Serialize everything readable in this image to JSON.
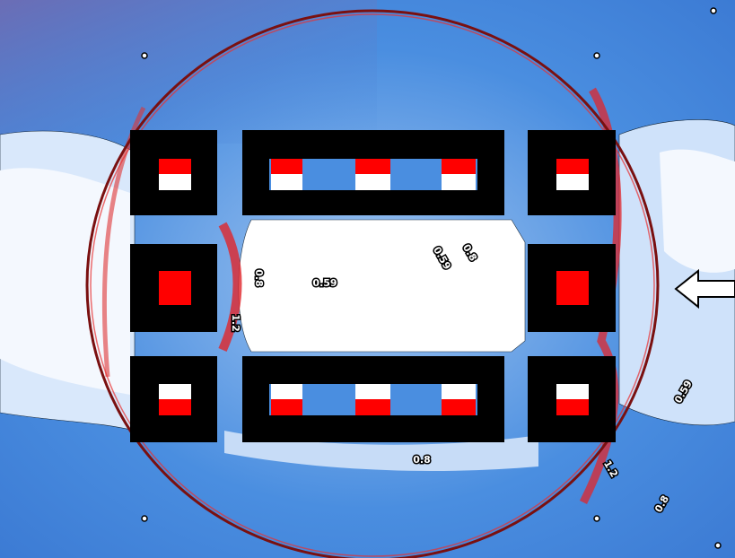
{
  "contour_labels": [
    {
      "text": "0.8"
    },
    {
      "text": "1.2"
    },
    {
      "text": "0.59"
    },
    {
      "text": "0.59"
    },
    {
      "text": "0.8"
    },
    {
      "text": "0.59"
    },
    {
      "text": "0.8"
    },
    {
      "text": "1.2"
    },
    {
      "text": "0.8"
    }
  ]
}
